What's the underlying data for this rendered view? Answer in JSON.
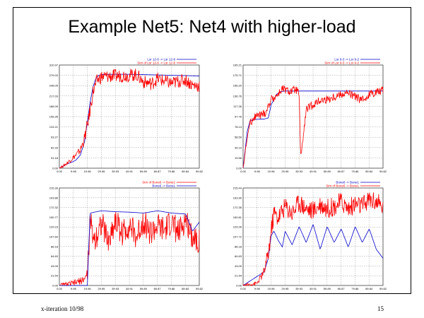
{
  "slide": {
    "title": "Example Net5: Net4 with higher-load",
    "footer_left": "x-iteration 10/98",
    "footer_right": "15",
    "colors": {
      "series_a": "#0000cc",
      "series_b": "#ff0000",
      "grid": "#9a9a9a"
    }
  },
  "chart_data": [
    {
      "type": "line",
      "grid": true,
      "legend_position": "top-right",
      "xticks": [
        "0.00",
        "9.98",
        "19.96",
        "29.95",
        "39.93",
        "49.91",
        "59.89",
        "69.87",
        "79.86",
        "89.84",
        "99.82"
      ],
      "yticks": [
        "0.00",
        "31.18",
        "62.33",
        "93.27",
        "124.21",
        "155.35",
        "186.09",
        "217.03",
        "248.05",
        "279.03",
        "310.97"
      ],
      "xlim": [
        0,
        99.82
      ],
      "ylim": [
        0,
        310.97
      ],
      "series": [
        {
          "name": "Lsr 12-6 -> Lsr 12-8",
          "color": "#0000cc",
          "x": [
            0,
            5,
            10,
            12,
            15,
            18,
            20,
            22,
            24,
            26,
            28,
            30,
            35,
            40,
            50,
            60,
            70,
            80,
            90,
            99.82
          ],
          "y": [
            0,
            12,
            20,
            25,
            40,
            80,
            140,
            200,
            245,
            270,
            280,
            282,
            283,
            283,
            283,
            282,
            281,
            280,
            279,
            278
          ]
        },
        {
          "name": "Sim of Lsr 12-6 -> Lsr 12-8",
          "color": "#ff0000",
          "x": [
            0,
            4,
            8,
            12,
            15,
            18,
            21,
            24,
            27,
            30,
            40,
            50,
            55,
            60,
            66,
            70,
            75,
            80,
            85,
            90,
            95,
            99.82
          ],
          "y": [
            0,
            10,
            25,
            40,
            55,
            90,
            150,
            230,
            265,
            275,
            278,
            280,
            282,
            260,
            255,
            270,
            262,
            256,
            262,
            266,
            250,
            248
          ],
          "noise": 20
        }
      ]
    },
    {
      "type": "line",
      "grid": true,
      "legend_position": "top-right",
      "xticks": [
        "0.00",
        "9.98",
        "19.96",
        "29.95",
        "39.93",
        "49.91",
        "59.89",
        "69.87",
        "79.86",
        "89.84",
        "99.82"
      ],
      "yticks": [
        "0.00",
        "19.56",
        "39.19",
        "58.59",
        "78.13",
        "97.76",
        "117.26",
        "136.76",
        "156.20",
        "175.71",
        "195.21"
      ],
      "xlim": [
        0,
        99.82
      ],
      "ylim": [
        0,
        195.21
      ],
      "series": [
        {
          "name": "Lsr 9-3 -> Lsr 9-2",
          "color": "#0000cc",
          "x": [
            0,
            3,
            5,
            8,
            12,
            15,
            18,
            20,
            24,
            27,
            30,
            99.82
          ],
          "y": [
            0,
            70,
            90,
            92,
            93,
            93,
            95,
            120,
            140,
            145,
            146,
            146
          ]
        },
        {
          "name": "Sim of Lsr 9-3 -> Lsr 9-2",
          "color": "#ff0000",
          "x": [
            0,
            3,
            5,
            8,
            12,
            16,
            20,
            25,
            28,
            33,
            38,
            40,
            41,
            43,
            45,
            50,
            55,
            60,
            70,
            75,
            80,
            85,
            90,
            95,
            99.82
          ],
          "y": [
            0,
            60,
            85,
            98,
            100,
            105,
            130,
            140,
            150,
            145,
            148,
            140,
            20,
            60,
            110,
            120,
            128,
            130,
            140,
            142,
            135,
            128,
            140,
            145,
            148
          ],
          "noise": 8
        }
      ]
    },
    {
      "type": "line",
      "grid": true,
      "legend_position": "top-right",
      "xticks": [
        "0.00",
        "9.98",
        "19.96",
        "29.95",
        "39.93",
        "49.91",
        "59.89",
        "69.87",
        "79.86",
        "89.84",
        "99.82"
      ],
      "yticks": [
        "0.00",
        "21.54",
        "43.09",
        "64.63",
        "86.18",
        "107.60",
        "129.23",
        "150.77",
        "172.32",
        "193.86",
        "215.39"
      ],
      "xlim": [
        0,
        99.82
      ],
      "ylim": [
        0,
        215.39
      ],
      "series": [
        {
          "name": "Sim of Bone6 -> Bone1",
          "color": "#ff0000",
          "x": [
            0,
            10,
            15,
            18,
            20,
            22,
            25,
            30,
            35,
            40,
            45,
            50,
            55,
            60,
            65,
            70,
            75,
            80,
            85,
            90,
            95,
            99.82
          ],
          "y": [
            0,
            5,
            10,
            15,
            25,
            140,
            100,
            140,
            95,
            145,
            115,
            135,
            105,
            145,
            115,
            130,
            120,
            140,
            115,
            145,
            110,
            100
          ],
          "noise": 30
        },
        {
          "name": "Bone6 -> Bone1",
          "color": "#0000cc",
          "x": [
            0,
            20,
            21,
            22,
            25,
            30,
            40,
            50,
            60,
            70,
            80,
            90,
            95,
            99.82
          ],
          "y": [
            0,
            0,
            90,
            160,
            162,
            165,
            163,
            162,
            160,
            165,
            160,
            158,
            120,
            140
          ]
        }
      ]
    },
    {
      "type": "line",
      "grid": true,
      "legend_position": "top-right",
      "xticks": [
        "0.00",
        "9.98",
        "19.96",
        "29.95",
        "39.93",
        "49.91",
        "59.89",
        "69.87",
        "79.86",
        "89.84",
        "99.82"
      ],
      "yticks": [
        "0.00",
        "21.54",
        "43.09",
        "64.63",
        "86.18",
        "107.72",
        "129.26",
        "150.81",
        "172.35",
        "193.90",
        "215.44"
      ],
      "xlim": [
        0,
        99.82
      ],
      "ylim": [
        0,
        215.44
      ],
      "series": [
        {
          "name": "Bone6 -> Bone1",
          "color": "#0000cc",
          "x": [
            0,
            5,
            10,
            15,
            18,
            20,
            22,
            25,
            28,
            30,
            35,
            40,
            45,
            50,
            55,
            60,
            65,
            70,
            75,
            80,
            85,
            90,
            95,
            99.82
          ],
          "y": [
            0,
            10,
            20,
            30,
            60,
            110,
            120,
            100,
            85,
            120,
            90,
            130,
            95,
            135,
            80,
            130,
            95,
            125,
            85,
            130,
            95,
            125,
            80,
            60
          ]
        },
        {
          "name": "Sim of Bone6 -> Bone1",
          "color": "#ff0000",
          "x": [
            0,
            10,
            15,
            18,
            20,
            22,
            25,
            30,
            35,
            40,
            45,
            50,
            55,
            60,
            65,
            70,
            75,
            80,
            85,
            90,
            95,
            99.82
          ],
          "y": [
            0,
            5,
            30,
            70,
            120,
            160,
            150,
            175,
            160,
            185,
            170,
            165,
            180,
            170,
            175,
            185,
            170,
            180,
            175,
            190,
            185,
            170
          ],
          "noise": 22
        }
      ]
    }
  ]
}
